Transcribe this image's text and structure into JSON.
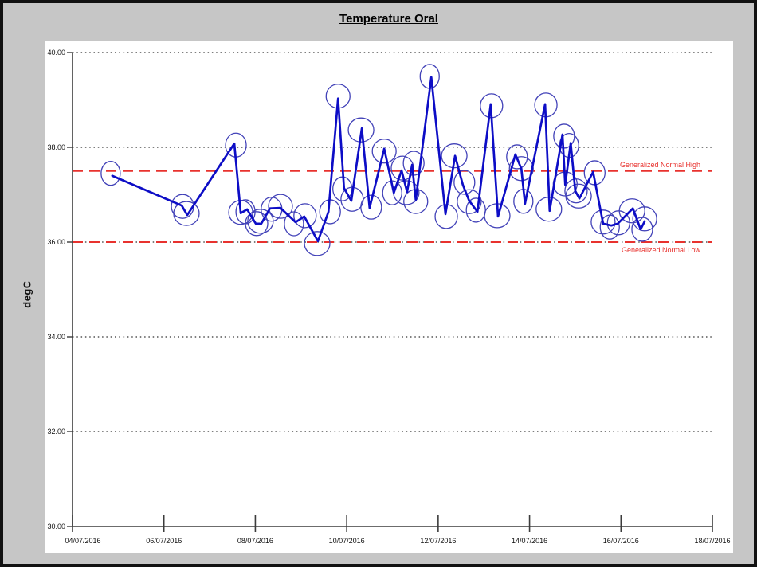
{
  "window": {
    "title": "Temperature Oral"
  },
  "chart_data": {
    "type": "line",
    "title": "Temperature Oral",
    "ylabel": "degC",
    "ylim": [
      30,
      40
    ],
    "ytick_values": [
      40,
      38,
      36,
      34,
      32,
      30
    ],
    "ytick_labels": [
      "40.00",
      "38.00",
      "36.00",
      "34.00",
      "32.00",
      "30.00"
    ],
    "x_axis": {
      "start_day": 0,
      "end_day": 14,
      "tick_step_days": 2,
      "x_unit": "days since 04/07/2016"
    },
    "xtick_labels": [
      "04/07/2016",
      "06/07/2016",
      "08/07/2016",
      "10/07/2016",
      "12/07/2016",
      "14/07/2016",
      "16/07/2016",
      "18/07/2016"
    ],
    "grid": "dotted horizontal gridlines at 32, 34, 36, 38, 40",
    "legend_position": "none",
    "reference_lines": [
      {
        "label": "Generalized Normal High",
        "value": 37.5,
        "color": "#e8322e",
        "label_position": "above"
      },
      {
        "label": "Generalized Normal Low",
        "value": 36.0,
        "color": "#e8322e",
        "label_position": "below"
      }
    ],
    "marker_note": "each reading is circled with a blue oval annotation",
    "series": [
      {
        "name": "Temperature Oral",
        "color": "#0d0dc6",
        "points": [
          {
            "day": 0.87,
            "temp": 37.4
          },
          {
            "day": 2.39,
            "temp": 36.77
          },
          {
            "day": 2.51,
            "temp": 36.57
          },
          {
            "day": 3.54,
            "temp": 38.08
          },
          {
            "day": 3.68,
            "temp": 36.61
          },
          {
            "day": 3.82,
            "temp": 36.69
          },
          {
            "day": 4.01,
            "temp": 36.39
          },
          {
            "day": 4.13,
            "temp": 36.39
          },
          {
            "day": 4.32,
            "temp": 36.71
          },
          {
            "day": 4.55,
            "temp": 36.72
          },
          {
            "day": 4.88,
            "temp": 36.42
          },
          {
            "day": 5.07,
            "temp": 36.54
          },
          {
            "day": 5.37,
            "temp": 36.02
          },
          {
            "day": 5.6,
            "temp": 36.64
          },
          {
            "day": 5.81,
            "temp": 39.03
          },
          {
            "day": 5.94,
            "temp": 37.14
          },
          {
            "day": 6.1,
            "temp": 36.87
          },
          {
            "day": 6.33,
            "temp": 38.4
          },
          {
            "day": 6.5,
            "temp": 36.72
          },
          {
            "day": 6.82,
            "temp": 37.97
          },
          {
            "day": 7.03,
            "temp": 37.04
          },
          {
            "day": 7.2,
            "temp": 37.51
          },
          {
            "day": 7.32,
            "temp": 37.06
          },
          {
            "day": 7.43,
            "temp": 37.63
          },
          {
            "day": 7.51,
            "temp": 36.89
          },
          {
            "day": 7.85,
            "temp": 39.48
          },
          {
            "day": 8.16,
            "temp": 36.59
          },
          {
            "day": 8.37,
            "temp": 37.82
          },
          {
            "day": 8.54,
            "temp": 37.21
          },
          {
            "day": 8.68,
            "temp": 36.87
          },
          {
            "day": 8.86,
            "temp": 36.64
          },
          {
            "day": 9.15,
            "temp": 38.91
          },
          {
            "day": 9.31,
            "temp": 36.54
          },
          {
            "day": 9.69,
            "temp": 37.85
          },
          {
            "day": 9.82,
            "temp": 37.55
          },
          {
            "day": 9.9,
            "temp": 36.81
          },
          {
            "day": 10.34,
            "temp": 38.91
          },
          {
            "day": 10.44,
            "temp": 36.66
          },
          {
            "day": 10.72,
            "temp": 38.27
          },
          {
            "day": 10.78,
            "temp": 37.21
          },
          {
            "day": 10.9,
            "temp": 38.09
          },
          {
            "day": 11.0,
            "temp": 37.08
          },
          {
            "day": 11.09,
            "temp": 36.92
          },
          {
            "day": 11.39,
            "temp": 37.48
          },
          {
            "day": 11.61,
            "temp": 36.39
          },
          {
            "day": 11.79,
            "temp": 36.35
          },
          {
            "day": 11.93,
            "temp": 36.39
          },
          {
            "day": 12.26,
            "temp": 36.71
          },
          {
            "day": 12.43,
            "temp": 36.27
          },
          {
            "day": 12.52,
            "temp": 36.44
          }
        ]
      }
    ],
    "colors": {
      "line": "#0d0dc6",
      "point_circle": "#4242b8",
      "reference": "#e8322e",
      "grid": "#303030",
      "axis": "#3c3c3c",
      "text": "#111111",
      "background": "#c6c6c6",
      "panel": "#ffffff"
    }
  }
}
